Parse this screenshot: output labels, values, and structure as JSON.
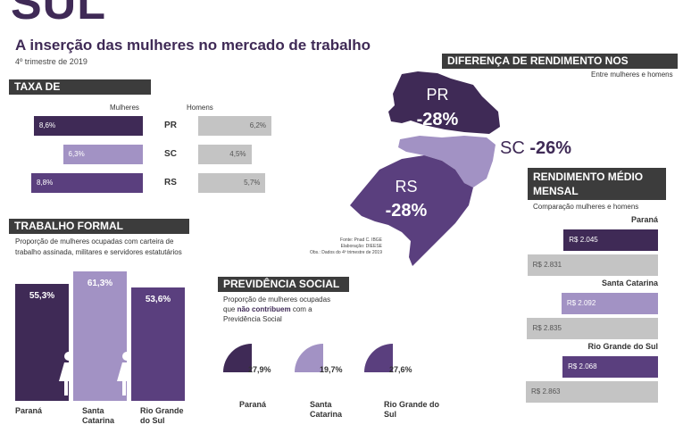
{
  "header": {
    "state_title": "SUL",
    "subtitle": "A inserção das mulheres no mercado de trabalho",
    "period": "4º trimestre de 2019"
  },
  "colors": {
    "dark_purple": "#3f2a56",
    "mid_purple": "#5a3f7e",
    "light_purple": "#a292c4",
    "gray": "#c4c4c4",
    "header_bg": "#3c3c3c"
  },
  "desocupacao": {
    "title": "TAXA DE DESOCUPAÇÃO",
    "women_label": "Mulheres",
    "men_label": "Homens",
    "rows": [
      {
        "state": "PR",
        "women": "8,6%",
        "men": "6,2%",
        "women_value": 8.6,
        "men_value": 6.2
      },
      {
        "state": "SC",
        "women": "6,3%",
        "men": "4,5%",
        "women_value": 6.3,
        "men_value": 4.5
      },
      {
        "state": "RS",
        "women": "8,8%",
        "men": "5,7%",
        "women_value": 8.8,
        "men_value": 5.7
      }
    ]
  },
  "formal": {
    "title": "TRABALHO FORMAL",
    "desc": "Proporção de mulheres ocupadas com carteira de trabalho assinada, militares e servidores estatutários",
    "columns": [
      {
        "value": "55,3%",
        "label": "Paraná",
        "num": 55.3
      },
      {
        "value": "61,3%",
        "label": "Santa Catarina",
        "num": 61.3
      },
      {
        "value": "53,6%",
        "label": "Rio Grande do Sul",
        "num": 53.6
      }
    ]
  },
  "previdencia": {
    "title": "PREVIDÊNCIA SOCIAL",
    "desc_pre": "Proporção de mulheres ocupadas que ",
    "desc_bold": "não contribuem",
    "desc_post": " com a Previdência Social",
    "items": [
      {
        "value": "27,9%",
        "label": "Paraná",
        "num": 27.9
      },
      {
        "value": "19,7%",
        "label": "Santa Catarina",
        "num": 19.7
      },
      {
        "value": "27,6%",
        "label": "Rio Grande do Sul",
        "num": 27.6
      }
    ]
  },
  "map": {
    "title": "DIFERENÇA DE RENDIMENTO NOS ESTADOS",
    "subtitle": "Entre mulheres e homens",
    "pr_code": "PR",
    "pr_value": "-28%",
    "sc_code": "SC",
    "sc_value": "-26%",
    "rs_code": "RS",
    "rs_value": "-28%",
    "source_1": "Fonte: Pnad C. IBGE",
    "source_2": "Elaboração: DIEESE",
    "source_3": "Obs.: Dados do 4º trimestre de 2019"
  },
  "rendimento": {
    "title_1": "RENDIMENTO MÉDIO",
    "title_2": "MENSAL",
    "desc": "Comparação mulheres e homens",
    "groups": [
      {
        "state": "Paraná",
        "women": "R$ 2.045",
        "men": "R$ 2.831",
        "women_num": 2045,
        "men_num": 2831
      },
      {
        "state": "Santa Catarina",
        "women": "R$ 2.092",
        "men": "R$ 2.835",
        "women_num": 2092,
        "men_num": 2835
      },
      {
        "state": "Rio Grande do Sul",
        "women": "R$ 2.068",
        "men": "R$ 2.863",
        "women_num": 2068,
        "men_num": 2863
      }
    ]
  }
}
